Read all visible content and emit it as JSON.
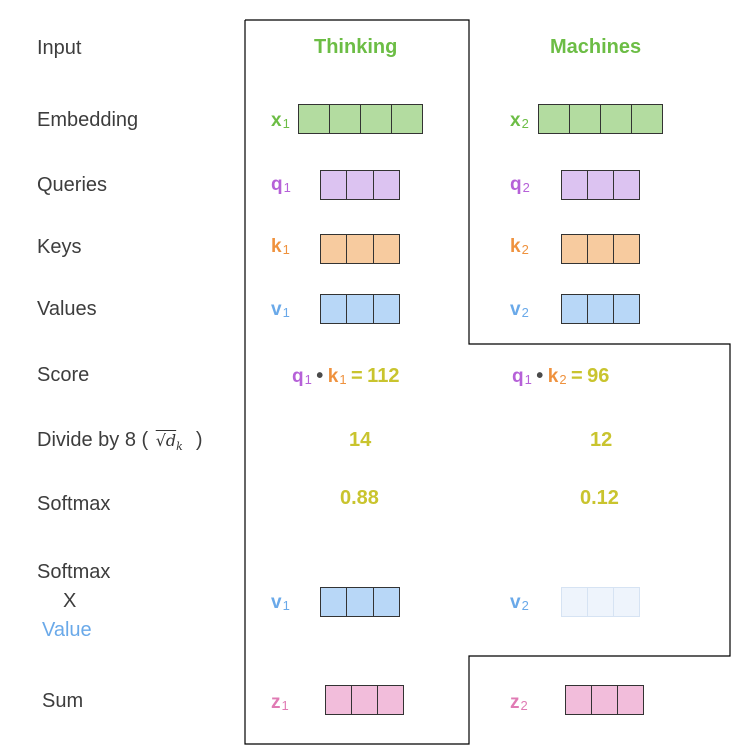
{
  "labels": {
    "input": "Input",
    "embedding": "Embedding",
    "queries": "Queries",
    "keys": "Keys",
    "values": "Values",
    "score": "Score",
    "divide": "Divide by 8 (",
    "divide_close": ")",
    "softmax": "Softmax",
    "softmax_x_value_1": "Softmax",
    "softmax_x_value_2": "X",
    "softmax_x_value_3": "Value",
    "sum": "Sum"
  },
  "formula": {
    "sqrt_dk": "√d",
    "sqrt_dk_sub": "k"
  },
  "columns": [
    {
      "word": "Thinking",
      "x": {
        "letter": "x",
        "sub": "1"
      },
      "q": {
        "letter": "q",
        "sub": "1"
      },
      "k": {
        "letter": "k",
        "sub": "1"
      },
      "v": {
        "letter": "v",
        "sub": "1"
      },
      "score": {
        "q": "q",
        "q_sub": "1",
        "dot": "•",
        "k": "k",
        "k_sub": "1",
        "eq": "=",
        "value": "112"
      },
      "divided": "14",
      "softmax": "0.88",
      "weighted_v": {
        "letter": "v",
        "sub": "1"
      },
      "z": {
        "letter": "z",
        "sub": "1"
      }
    },
    {
      "word": "Machines",
      "x": {
        "letter": "x",
        "sub": "2"
      },
      "q": {
        "letter": "q",
        "sub": "2"
      },
      "k": {
        "letter": "k",
        "sub": "2"
      },
      "v": {
        "letter": "v",
        "sub": "2"
      },
      "score": {
        "q": "q",
        "q_sub": "1",
        "dot": "•",
        "k": "k",
        "k_sub": "2",
        "eq": "=",
        "value": "96"
      },
      "divided": "12",
      "softmax": "0.12",
      "weighted_v": {
        "letter": "v",
        "sub": "2"
      },
      "z": {
        "letter": "z",
        "sub": "2"
      }
    }
  ],
  "colors": {
    "embedding": "#b3dca0",
    "query": "#dcc3f1",
    "key": "#f7cb9f",
    "value": "#b8d7f7",
    "value_faded": "#eef4fc",
    "sum": "#f2bddb",
    "outline": "#000000"
  },
  "vector_cells": {
    "embedding": 4,
    "qkv": 3
  }
}
